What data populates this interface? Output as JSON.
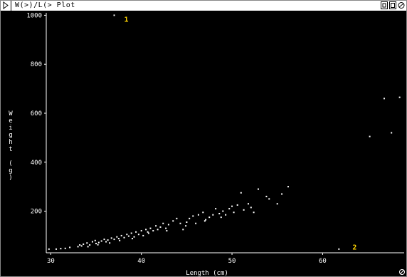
{
  "window": {
    "title": "W(>)/L(> Plot",
    "controls": [
      "zoom-icon",
      "resize-icon",
      "close-icon"
    ]
  },
  "chart_data": {
    "type": "scatter",
    "title": "",
    "xlabel": "Length (cm)",
    "ylabel": "Weight (g)",
    "ylabel_chars": [
      "W",
      "e",
      "i",
      "g",
      "h",
      "t",
      "",
      "(",
      "g",
      ")"
    ],
    "xlim": [
      29.5,
      69
    ],
    "ylim": [
      30,
      1010
    ],
    "xticks": [
      30,
      40,
      50,
      60
    ],
    "yticks": [
      200,
      400,
      600,
      800,
      1000
    ],
    "point_color": "#ffffff",
    "annotations": [
      {
        "text": "1",
        "x": 38.1,
        "y": 985
      },
      {
        "text": "2",
        "x": 63.3,
        "y": 55
      }
    ],
    "points": [
      [
        37.0,
        1000
      ],
      [
        61.8,
        45
      ],
      [
        65.2,
        505
      ],
      [
        66.8,
        660
      ],
      [
        67.6,
        520
      ],
      [
        68.5,
        665
      ],
      [
        29.8,
        45
      ],
      [
        30.6,
        45
      ],
      [
        31.1,
        47
      ],
      [
        31.6,
        48
      ],
      [
        32.1,
        52
      ],
      [
        33.0,
        55
      ],
      [
        33.2,
        62
      ],
      [
        33.4,
        58
      ],
      [
        33.6,
        65
      ],
      [
        34.0,
        70
      ],
      [
        34.3,
        62
      ],
      [
        34.6,
        75
      ],
      [
        34.9,
        80
      ],
      [
        35.0,
        68
      ],
      [
        35.3,
        72
      ],
      [
        35.6,
        78
      ],
      [
        35.9,
        85
      ],
      [
        36.1,
        75
      ],
      [
        36.3,
        82
      ],
      [
        36.7,
        90
      ],
      [
        37.0,
        85
      ],
      [
        37.3,
        95
      ],
      [
        37.5,
        88
      ],
      [
        37.8,
        100
      ],
      [
        38.1,
        92
      ],
      [
        38.4,
        105
      ],
      [
        38.6,
        98
      ],
      [
        38.9,
        110
      ],
      [
        39.2,
        95
      ],
      [
        39.4,
        115
      ],
      [
        39.7,
        105
      ],
      [
        40.0,
        120
      ],
      [
        40.2,
        100
      ],
      [
        40.5,
        125
      ],
      [
        40.7,
        115
      ],
      [
        41.0,
        130
      ],
      [
        41.3,
        120
      ],
      [
        41.6,
        140
      ],
      [
        41.8,
        125
      ],
      [
        42.1,
        135
      ],
      [
        42.4,
        150
      ],
      [
        42.7,
        130
      ],
      [
        43.0,
        145
      ],
      [
        43.5,
        160
      ],
      [
        43.9,
        170
      ],
      [
        44.3,
        150
      ],
      [
        44.6,
        125
      ],
      [
        45.0,
        155
      ],
      [
        45.3,
        170
      ],
      [
        45.7,
        180
      ],
      [
        46.0,
        150
      ],
      [
        46.3,
        185
      ],
      [
        46.8,
        195
      ],
      [
        47.1,
        165
      ],
      [
        47.5,
        175
      ],
      [
        47.9,
        185
      ],
      [
        48.2,
        210
      ],
      [
        48.6,
        190
      ],
      [
        49.0,
        200
      ],
      [
        49.3,
        185
      ],
      [
        49.7,
        210
      ],
      [
        50.0,
        220
      ],
      [
        50.2,
        195
      ],
      [
        50.6,
        225
      ],
      [
        51.0,
        275
      ],
      [
        51.3,
        205
      ],
      [
        51.8,
        230
      ],
      [
        52.1,
        215
      ],
      [
        52.4,
        195
      ],
      [
        52.9,
        290
      ],
      [
        53.8,
        260
      ],
      [
        54.1,
        250
      ],
      [
        55.0,
        230
      ],
      [
        55.5,
        270
      ],
      [
        56.2,
        300
      ],
      [
        34.1,
        55
      ],
      [
        35.2,
        63
      ],
      [
        36.5,
        70
      ],
      [
        37.6,
        80
      ],
      [
        39.0,
        88
      ],
      [
        40.8,
        110
      ],
      [
        42.8,
        120
      ],
      [
        44.9,
        140
      ],
      [
        47.0,
        160
      ],
      [
        48.8,
        175
      ]
    ]
  }
}
